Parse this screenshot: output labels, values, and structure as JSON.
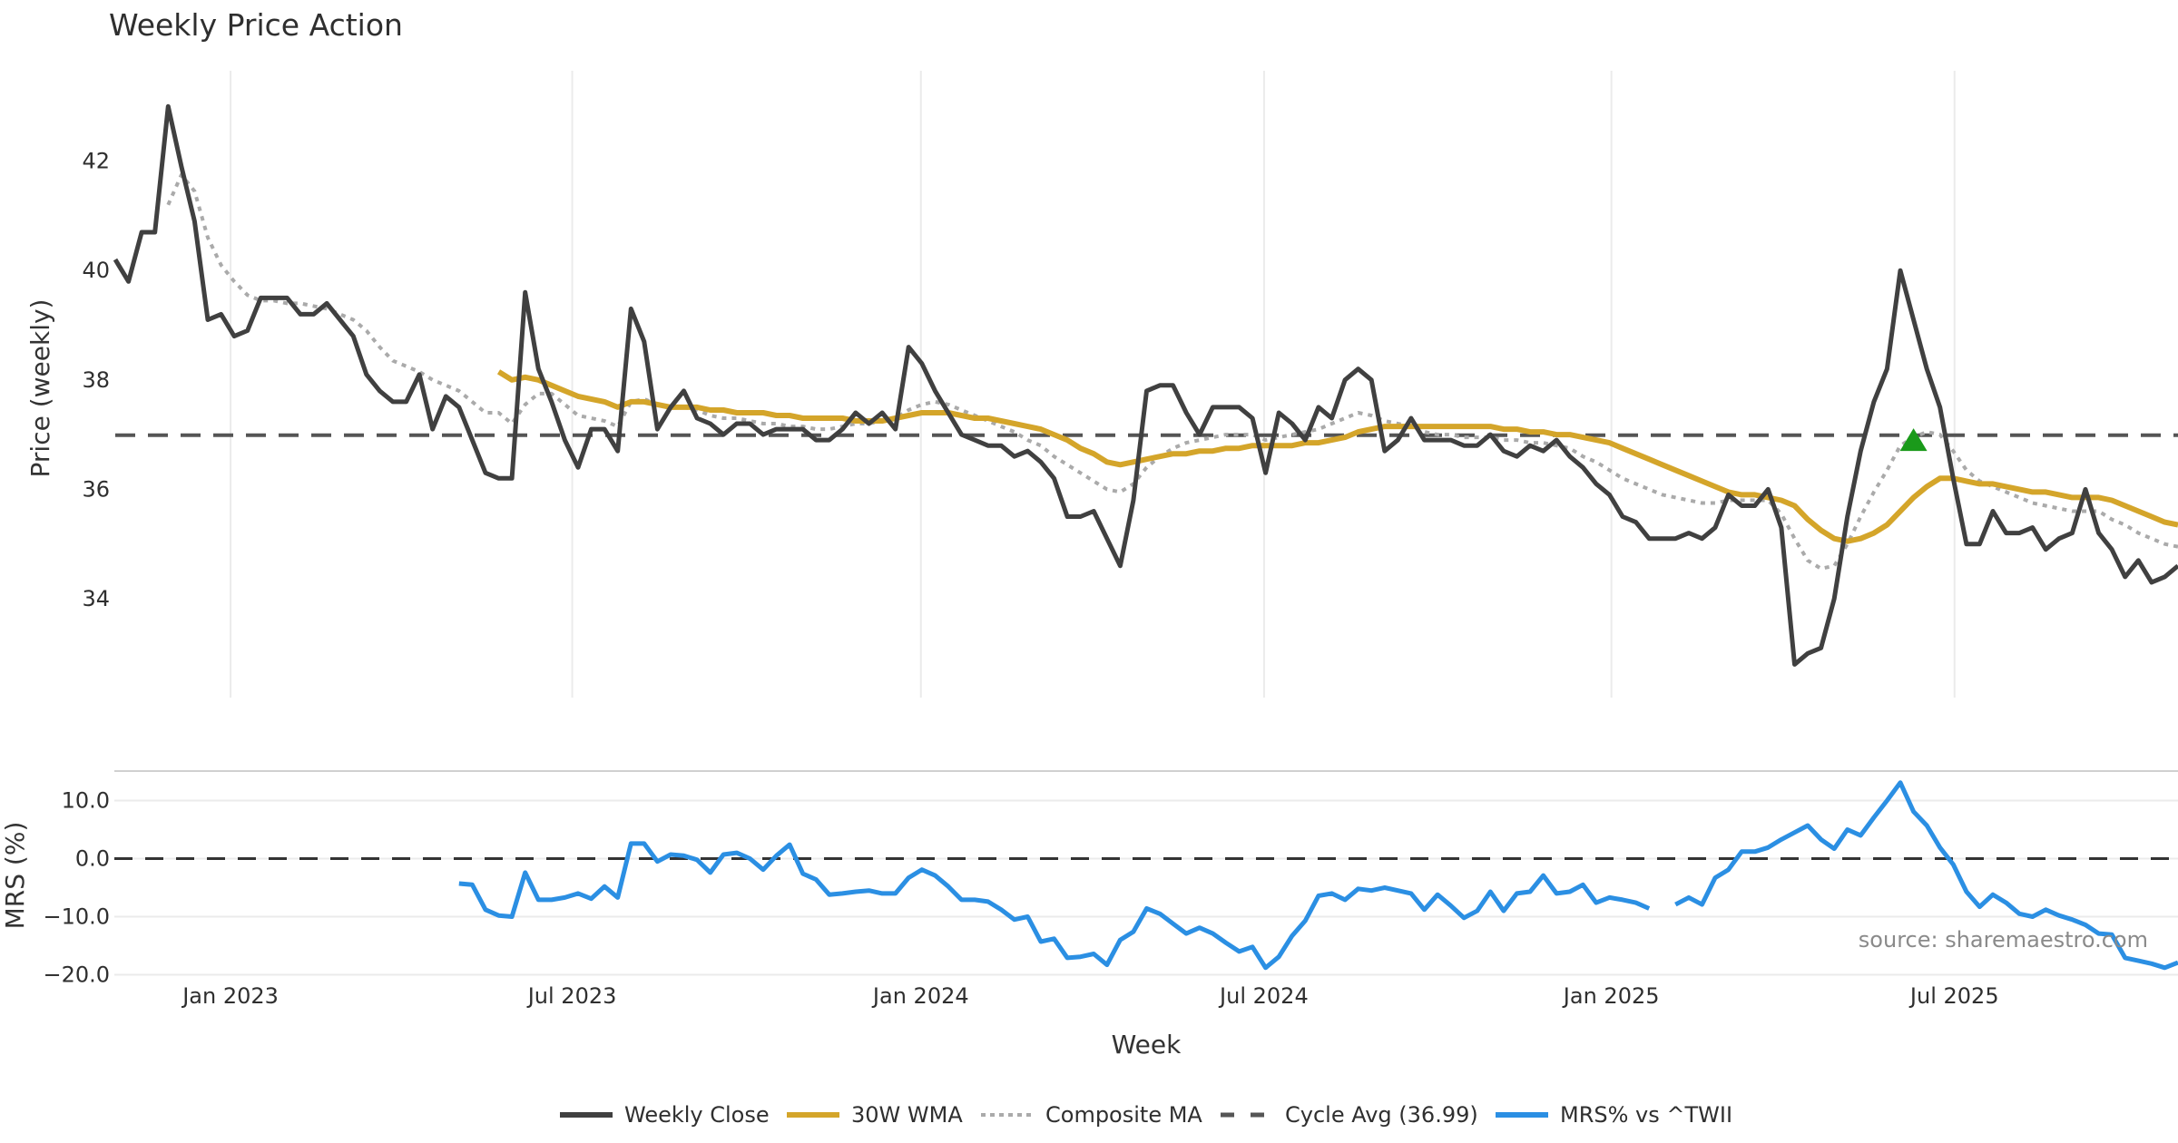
{
  "chart_data": {
    "type": "line",
    "title": "Weekly Price Action",
    "source": "source: sharemaestro.com",
    "xlabel": "Week",
    "xlim": [
      0,
      156
    ],
    "x_unit": "week index",
    "x_ticks": [
      {
        "week": 8.72,
        "label": "Jan 2023"
      },
      {
        "week": 34.56,
        "label": "Jul 2023"
      },
      {
        "week": 60.93,
        "label": "Jan 2024"
      },
      {
        "week": 86.88,
        "label": "Jul 2024"
      },
      {
        "week": 113.15,
        "label": "Jan 2025"
      },
      {
        "week": 139.1,
        "label": "Jul 2025"
      }
    ],
    "grid": {
      "top_panel": "vertical",
      "bottom_panel": "horizontal"
    },
    "legend_placement": "bottom-center",
    "panels": [
      {
        "name": "price",
        "ylabel": "Price (weekly)",
        "ylim": [
          32.2,
          43.6
        ],
        "y_ticks": [
          {
            "value": 34,
            "label": "34"
          },
          {
            "value": 36,
            "label": "36"
          },
          {
            "value": 38,
            "label": "38"
          },
          {
            "value": 40,
            "label": "40"
          },
          {
            "value": 42,
            "label": "42"
          }
        ],
        "series": [
          {
            "name": "Weekly Close",
            "color": "#404040",
            "style": "solid",
            "start_week": 0,
            "values": [
              40.2,
              39.8,
              40.7,
              40.7,
              43.0,
              41.9,
              40.9,
              39.1,
              39.2,
              38.8,
              38.9,
              39.5,
              39.5,
              39.5,
              39.2,
              39.2,
              39.4,
              39.1,
              38.8,
              38.1,
              37.8,
              37.6,
              37.6,
              38.1,
              37.1,
              37.7,
              37.5,
              36.9,
              36.3,
              36.2,
              36.2,
              39.6,
              38.2,
              37.6,
              36.9,
              36.4,
              37.1,
              37.1,
              36.7,
              39.3,
              38.7,
              37.1,
              37.5,
              37.8,
              37.3,
              37.2,
              37.0,
              37.2,
              37.2,
              37.0,
              37.1,
              37.1,
              37.1,
              36.9,
              36.9,
              37.1,
              37.4,
              37.2,
              37.4,
              37.1,
              38.6,
              38.3,
              37.8,
              37.4,
              37.0,
              36.9,
              36.8,
              36.8,
              36.6,
              36.7,
              36.5,
              36.2,
              35.5,
              35.5,
              35.6,
              35.1,
              34.6,
              35.8,
              37.8,
              37.9,
              37.9,
              37.4,
              37.0,
              37.5,
              37.5,
              37.5,
              37.3,
              36.3,
              37.4,
              37.2,
              36.9,
              37.5,
              37.3,
              38.0,
              38.2,
              38.0,
              36.7,
              36.9,
              37.3,
              36.9,
              36.9,
              36.9,
              36.8,
              36.8,
              37.0,
              36.7,
              36.6,
              36.8,
              36.7,
              36.9,
              36.6,
              36.4,
              36.1,
              35.9,
              35.5,
              35.4,
              35.1,
              35.1,
              35.1,
              35.2,
              35.1,
              35.3,
              35.9,
              35.7,
              35.7,
              36.0,
              35.3,
              32.8,
              33.0,
              33.1,
              34.0,
              35.5,
              36.7,
              37.6,
              38.2,
              40.0,
              39.1,
              38.2,
              37.5,
              36.2,
              35.0,
              35.0,
              35.6,
              35.2,
              35.2,
              35.3,
              34.9,
              35.1,
              35.2,
              36.0,
              35.2,
              34.9,
              34.4,
              34.7,
              34.3,
              34.4,
              34.6
            ]
          },
          {
            "name": "30W WMA",
            "color": "#d4a52a",
            "style": "solid",
            "start_week": 29,
            "values": [
              38.15,
              38.0,
              38.05,
              38.0,
              37.9,
              37.8,
              37.7,
              37.65,
              37.6,
              37.5,
              37.6,
              37.6,
              37.55,
              37.5,
              37.5,
              37.5,
              37.45,
              37.45,
              37.4,
              37.4,
              37.4,
              37.35,
              37.35,
              37.3,
              37.3,
              37.3,
              37.3,
              37.25,
              37.25,
              37.25,
              37.3,
              37.35,
              37.4,
              37.4,
              37.4,
              37.35,
              37.3,
              37.3,
              37.25,
              37.2,
              37.15,
              37.1,
              37.0,
              36.9,
              36.75,
              36.65,
              36.5,
              36.45,
              36.5,
              36.55,
              36.6,
              36.65,
              36.65,
              36.7,
              36.7,
              36.75,
              36.75,
              36.8,
              36.8,
              36.8,
              36.8,
              36.85,
              36.85,
              36.9,
              36.95,
              37.05,
              37.1,
              37.15,
              37.15,
              37.15,
              37.15,
              37.15,
              37.15,
              37.15,
              37.15,
              37.15,
              37.1,
              37.1,
              37.05,
              37.05,
              37.0,
              37.0,
              36.95,
              36.9,
              36.85,
              36.75,
              36.65,
              36.55,
              36.45,
              36.35,
              36.25,
              36.15,
              36.05,
              35.95,
              35.9,
              35.9,
              35.85,
              35.8,
              35.7,
              35.45,
              35.25,
              35.1,
              35.05,
              35.1,
              35.2,
              35.35,
              35.6,
              35.85,
              36.05,
              36.2,
              36.2,
              36.15,
              36.1,
              36.1,
              36.05,
              36.0,
              35.95,
              35.95,
              35.9,
              35.85,
              35.85,
              35.85,
              35.8,
              35.7,
              35.6,
              35.5,
              35.4,
              35.35
            ]
          },
          {
            "name": "Composite MA",
            "color": "#aaaaaa",
            "style": "dotted",
            "start_week": 4,
            "values": [
              41.2,
              41.75,
              41.45,
              40.6,
              40.1,
              39.8,
              39.55,
              39.45,
              39.45,
              39.4,
              39.4,
              39.35,
              39.3,
              39.2,
              39.1,
              38.9,
              38.6,
              38.35,
              38.25,
              38.15,
              38.0,
              37.9,
              37.8,
              37.6,
              37.4,
              37.4,
              37.2,
              37.55,
              37.75,
              37.75,
              37.55,
              37.35,
              37.3,
              37.25,
              37.15,
              37.6,
              37.65,
              37.55,
              37.5,
              37.5,
              37.45,
              37.35,
              37.3,
              37.3,
              37.25,
              37.2,
              37.2,
              37.15,
              37.15,
              37.1,
              37.1,
              37.15,
              37.2,
              37.2,
              37.25,
              37.3,
              37.45,
              37.55,
              37.6,
              37.55,
              37.45,
              37.35,
              37.25,
              37.15,
              37.05,
              36.9,
              36.8,
              36.6,
              36.45,
              36.3,
              36.15,
              36.0,
              35.95,
              36.1,
              36.4,
              36.6,
              36.75,
              36.85,
              36.9,
              36.95,
              37.0,
              37.0,
              37.0,
              36.9,
              36.95,
              37.0,
              37.05,
              37.1,
              37.2,
              37.3,
              37.4,
              37.35,
              37.25,
              37.2,
              37.15,
              37.05,
              37.0,
              37.0,
              36.95,
              36.95,
              36.95,
              36.9,
              36.9,
              36.85,
              36.85,
              36.8,
              36.75,
              36.6,
              36.5,
              36.35,
              36.2,
              36.1,
              36.0,
              35.9,
              35.85,
              35.8,
              35.75,
              35.75,
              35.8,
              35.8,
              35.8,
              35.8,
              35.55,
              35.1,
              34.7,
              34.55,
              34.6,
              35.0,
              35.5,
              35.95,
              36.35,
              36.8,
              36.95,
              37.05,
              37.0,
              36.7,
              36.35,
              36.15,
              36.05,
              35.95,
              35.85,
              35.75,
              35.7,
              35.65,
              35.6,
              35.6,
              35.6,
              35.45,
              35.35,
              35.2,
              35.1,
              35.0,
              34.95
            ]
          },
          {
            "name": "Cycle Avg (36.99)",
            "color": "#555555",
            "style": "dashed",
            "constant": 36.99
          }
        ],
        "markers": [
          {
            "name": "signal",
            "shape": "triangle-up",
            "color": "#1a9a1a",
            "week": 136,
            "value": 36.9
          }
        ]
      },
      {
        "name": "mrs",
        "ylabel": "MRS (%)",
        "ylim": [
          -21,
          15
        ],
        "y_ticks": [
          {
            "value": 10,
            "label": "10.0"
          },
          {
            "value": 0,
            "label": "0.0"
          },
          {
            "value": -10,
            "label": "−10.0"
          },
          {
            "value": -20,
            "label": "−20.0"
          }
        ],
        "zero_line": {
          "value": 0,
          "style": "dashed",
          "color": "#333333"
        },
        "series": [
          {
            "name": "MRS% vs ^TWII",
            "color": "#2b8fe3",
            "style": "solid",
            "start_week": 26,
            "values": [
              -4.3,
              -4.5,
              -8.8,
              -9.8,
              -10.0,
              -2.4,
              -7.1,
              -7.1,
              -6.7,
              -6.0,
              -6.9,
              -4.8,
              -6.7,
              2.6,
              2.6,
              -0.5,
              0.7,
              0.5,
              -0.2,
              -2.4,
              0.7,
              1.0,
              0,
              -1.9,
              0.5,
              2.4,
              -2.6,
              -3.6,
              -6.2,
              -6.0,
              -5.7,
              -5.5,
              -6.0,
              -6.0,
              -3.3,
              -1.9,
              -2.9,
              -4.8,
              -7.1,
              -7.1,
              -7.4,
              -8.8,
              -10.5,
              -10.0,
              -14.3,
              -13.8,
              -17.1,
              -16.9,
              -16.4,
              -18.3,
              -14.0,
              -12.6,
              -8.6,
              -9.5,
              -11.2,
              -12.9,
              -11.9,
              -12.9,
              -14.5,
              -16.0,
              -15.2,
              -18.8,
              -16.9,
              -13.3,
              -10.7,
              -6.4,
              -6.0,
              -7.1,
              -5.2,
              -5.5,
              -5.0,
              -5.5,
              -6.0,
              -8.8,
              -6.2,
              -8.1,
              -10.2,
              -9.0,
              -5.7,
              -9.0,
              -6.0,
              -5.7,
              -2.9,
              -6.0,
              -5.7,
              -4.5,
              -7.6,
              -6.7,
              -7.1,
              -7.6,
              -8.6,
              null,
              -7.9,
              -6.7,
              -7.9,
              -3.3,
              -1.9,
              1.2,
              1.2,
              1.9,
              3.3,
              4.5,
              5.7,
              3.3,
              1.7,
              5.0,
              4.0,
              7.1,
              10.0,
              13.1,
              8.1,
              5.7,
              1.9,
              -1.0,
              -5.7,
              -8.3,
              -6.2,
              -7.6,
              -9.5,
              -10.0,
              -8.8,
              -9.8,
              -10.5,
              -11.4,
              -12.9,
              -13.1,
              -17.1,
              -17.6,
              -18.1,
              -18.8,
              -17.9
            ]
          }
        ]
      }
    ],
    "legend": [
      {
        "label": "Weekly Close",
        "color": "#404040",
        "style": "solid"
      },
      {
        "label": "30W WMA",
        "color": "#d4a52a",
        "style": "solid"
      },
      {
        "label": "Composite MA",
        "color": "#aaaaaa",
        "style": "dotted"
      },
      {
        "label": "Cycle Avg (36.99)",
        "color": "#555555",
        "style": "dashed"
      },
      {
        "label": "MRS% vs ^TWII",
        "color": "#2b8fe3",
        "style": "solid"
      }
    ]
  }
}
